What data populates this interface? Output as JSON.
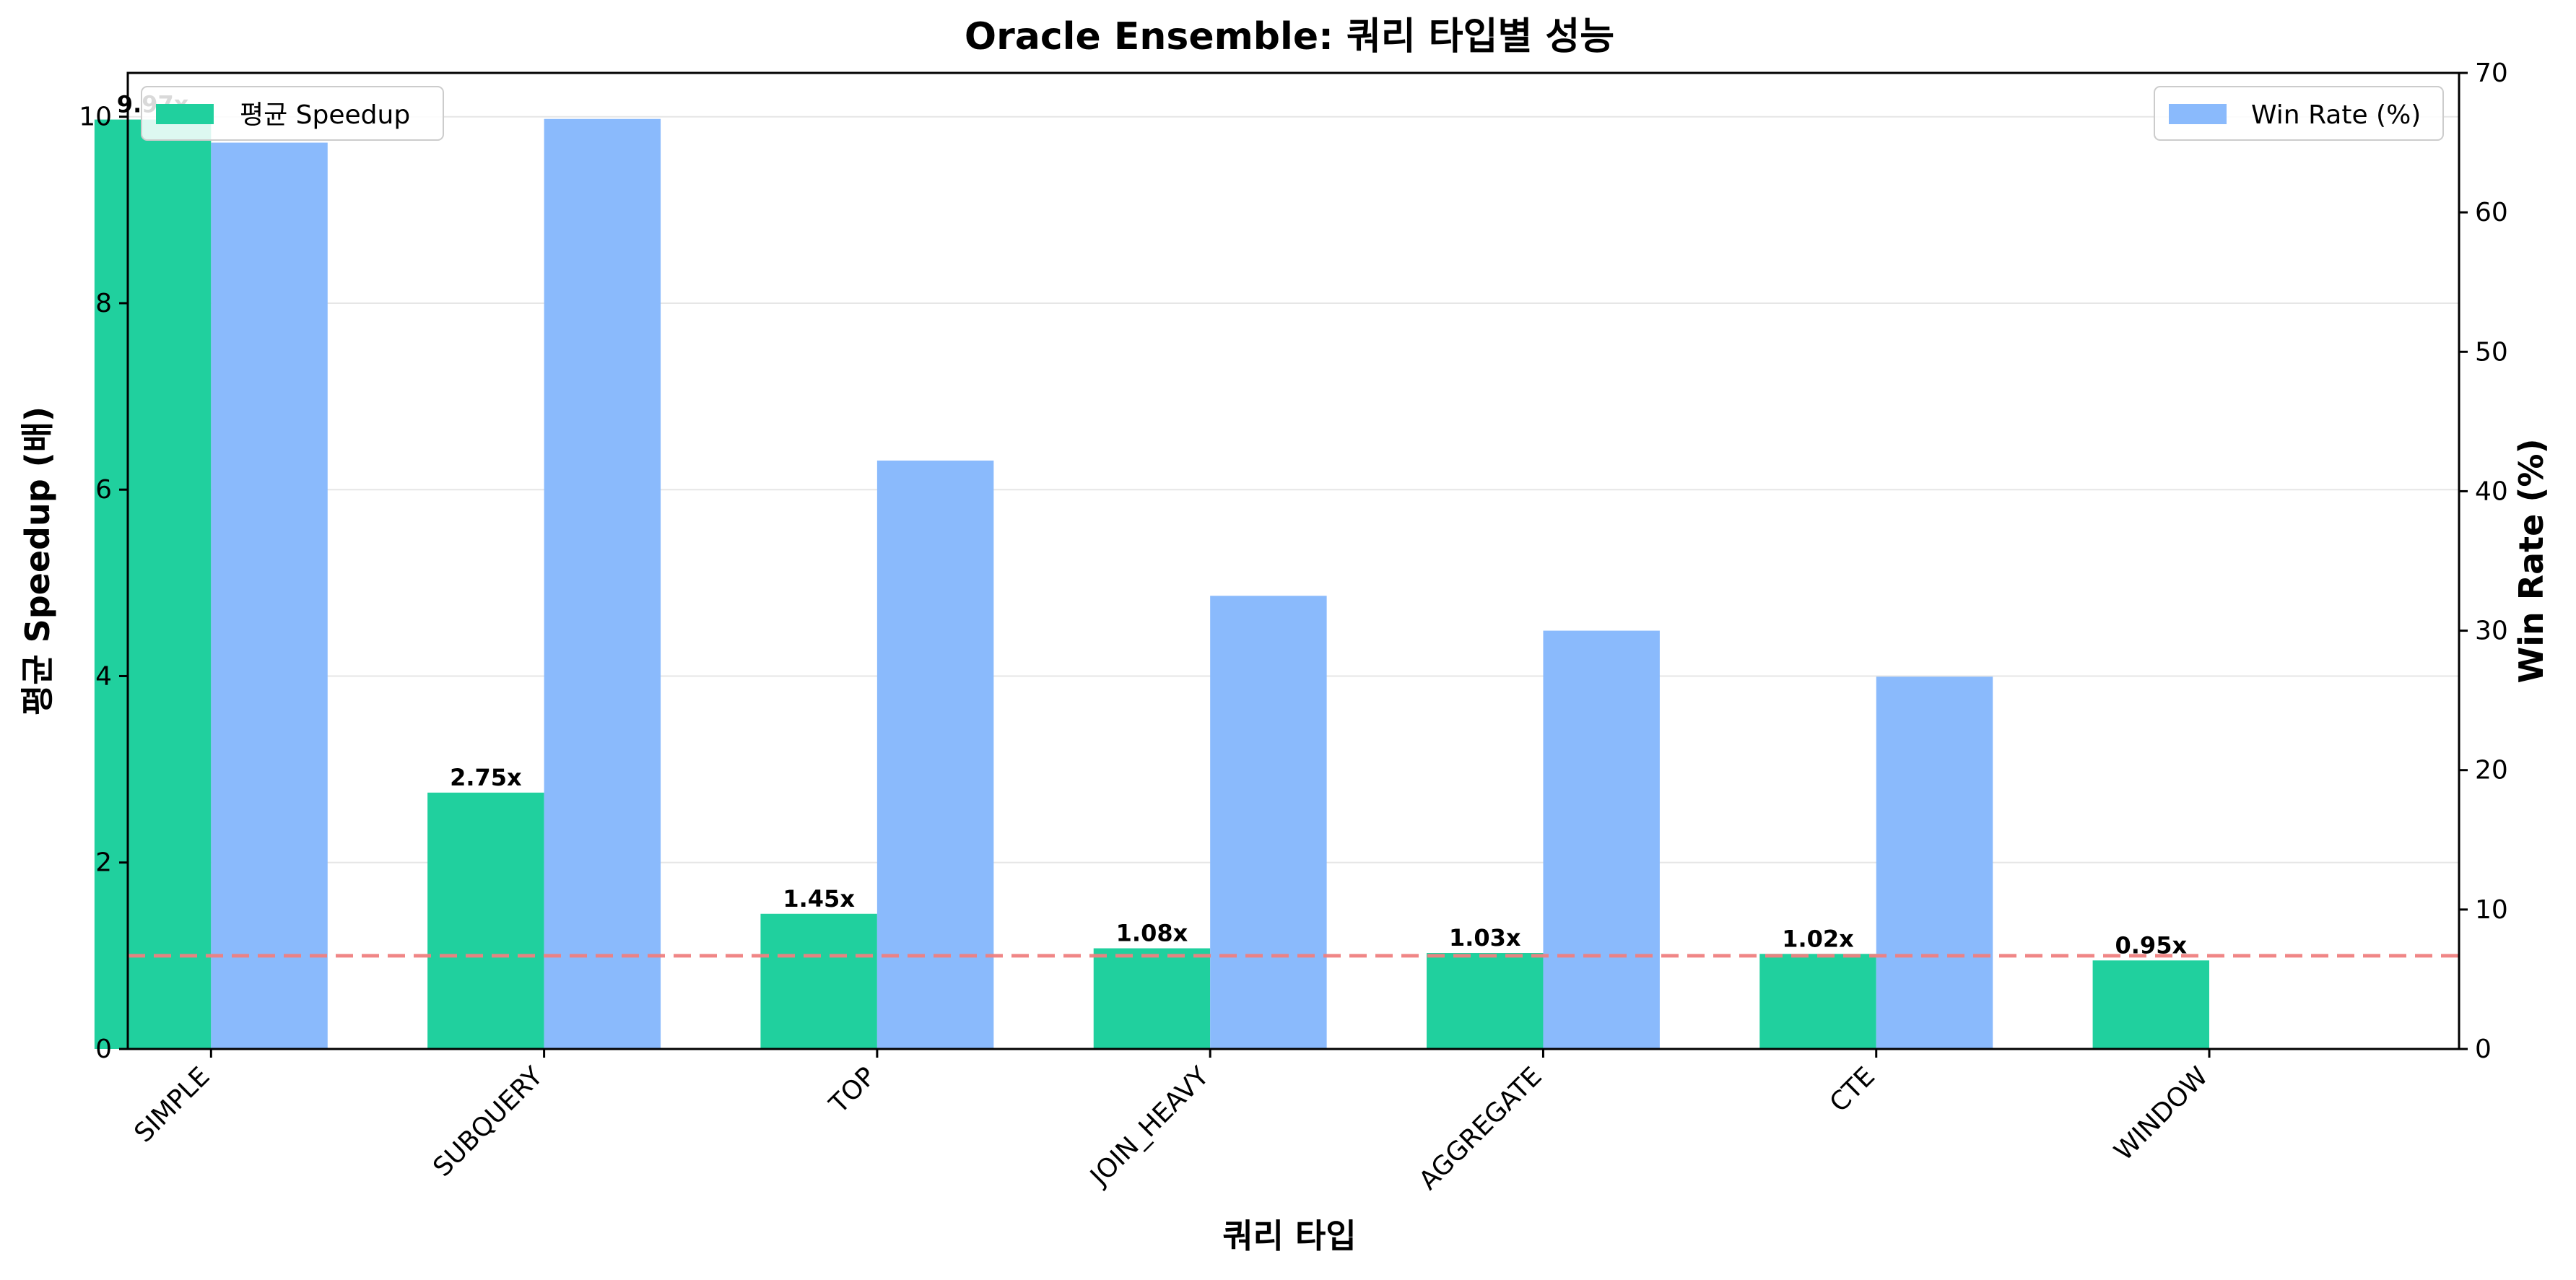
{
  "chart_data": {
    "type": "bar",
    "title": "Oracle Ensemble: 쿼리 타입별 성능",
    "xlabel": "쿼리 타입",
    "ylabel_left": "평균 Speedup (배)",
    "ylabel_right": "Win Rate (%)",
    "categories": [
      "SIMPLE",
      "SUBQUERY",
      "TOP",
      "JOIN_HEAVY",
      "AGGREGATE",
      "CTE",
      "WINDOW"
    ],
    "series": [
      {
        "name": "평균 Speedup",
        "axis": "left",
        "color": "#20d09e",
        "values": [
          9.97,
          2.75,
          1.45,
          1.08,
          1.03,
          1.02,
          0.95
        ],
        "labels": [
          "9.97x",
          "2.75x",
          "1.45x",
          "1.08x",
          "1.03x",
          "1.02x",
          "0.95x"
        ]
      },
      {
        "name": "Win Rate (%)",
        "axis": "right",
        "color": "#8abafc",
        "values": [
          65.0,
          66.7,
          42.2,
          32.5,
          30.0,
          26.7,
          0
        ]
      }
    ],
    "ylim_left": [
      0,
      10.47
    ],
    "ylim_right": [
      0,
      70
    ],
    "yticks_left": [
      "0",
      "2",
      "4",
      "6",
      "8",
      "10"
    ],
    "yticks_right": [
      "0",
      "10",
      "20",
      "30",
      "40",
      "50",
      "60",
      "70"
    ],
    "reference_line": {
      "value": 1.0,
      "axis": "left",
      "style": "dashed",
      "color": "#f08080"
    },
    "grid": "horizontal",
    "legend_left_placement": "top-left",
    "legend_right_placement": "top-right",
    "x_tick_rotation": -45
  }
}
